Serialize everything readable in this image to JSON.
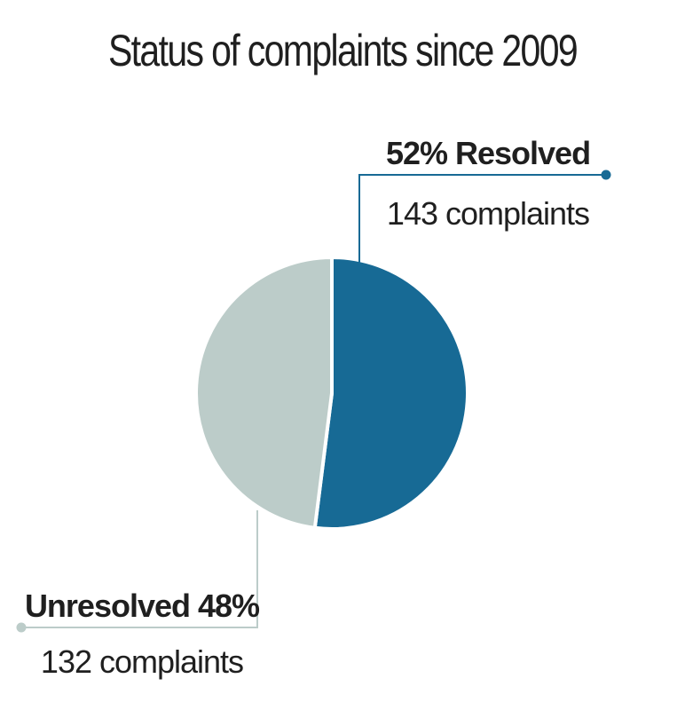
{
  "chart_data": {
    "type": "pie",
    "title": "Status of complaints since 2009",
    "slices": [
      {
        "name": "Resolved",
        "percent": 52,
        "label": "52% Resolved",
        "sublabel": "143 complaints",
        "count": 143,
        "color": "#176a95"
      },
      {
        "name": "Unresolved",
        "percent": 48,
        "label": "Unresolved 48%",
        "sublabel": "132 complaints",
        "count": 132,
        "color": "#bcccc9"
      }
    ]
  }
}
